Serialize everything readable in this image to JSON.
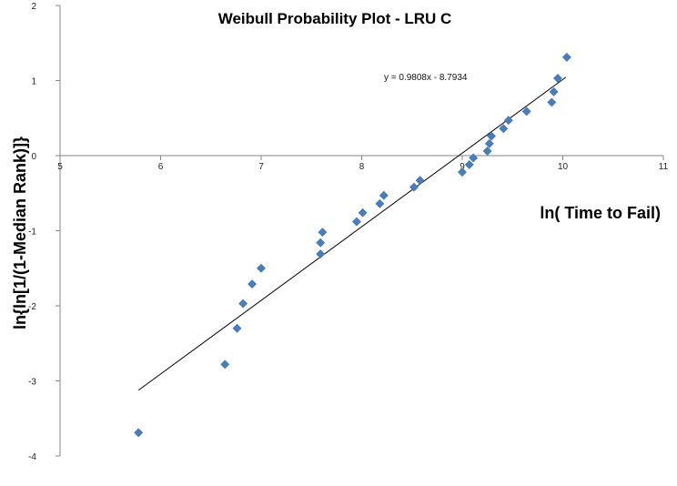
{
  "chart_data": {
    "type": "scatter",
    "title": "Weibull Probability Plot - LRU C",
    "xlabel": "ln( Time to Fail)",
    "ylabel": "ln{ln[1/(1-Median Rank)]}",
    "xlim": [
      5,
      11
    ],
    "ylim": [
      -4,
      2
    ],
    "xticks": [
      "5",
      "6",
      "7",
      "8",
      "9",
      "10",
      "11"
    ],
    "yticks": [
      "2",
      "1",
      "0",
      "-1",
      "-2",
      "-3",
      "-4"
    ],
    "marker_color": "#4a7ebb",
    "trendline": {
      "equation": "y = 0.9808x - 8.7934",
      "slope": 0.9808,
      "intercept": -8.7934,
      "x_range": [
        5.78,
        10.03
      ],
      "color": "#000000"
    },
    "series": [
      {
        "x": [
          5.78,
          6.64,
          6.76,
          6.82,
          6.91,
          7.0,
          7.59,
          7.59,
          7.61,
          7.95,
          8.01,
          8.18,
          8.22,
          8.52,
          8.58,
          9.0,
          9.07,
          9.11,
          9.25,
          9.27,
          9.29,
          9.41,
          9.46,
          9.64,
          9.89,
          9.91,
          9.95,
          10.04
        ],
        "y": [
          -3.69,
          -2.78,
          -2.3,
          -1.97,
          -1.71,
          -1.5,
          -1.31,
          -1.16,
          -1.02,
          -0.88,
          -0.76,
          -0.64,
          -0.53,
          -0.42,
          -0.33,
          -0.22,
          -0.12,
          -0.03,
          0.06,
          0.16,
          0.26,
          0.36,
          0.47,
          0.59,
          0.71,
          0.85,
          1.03,
          1.31
        ]
      }
    ]
  }
}
